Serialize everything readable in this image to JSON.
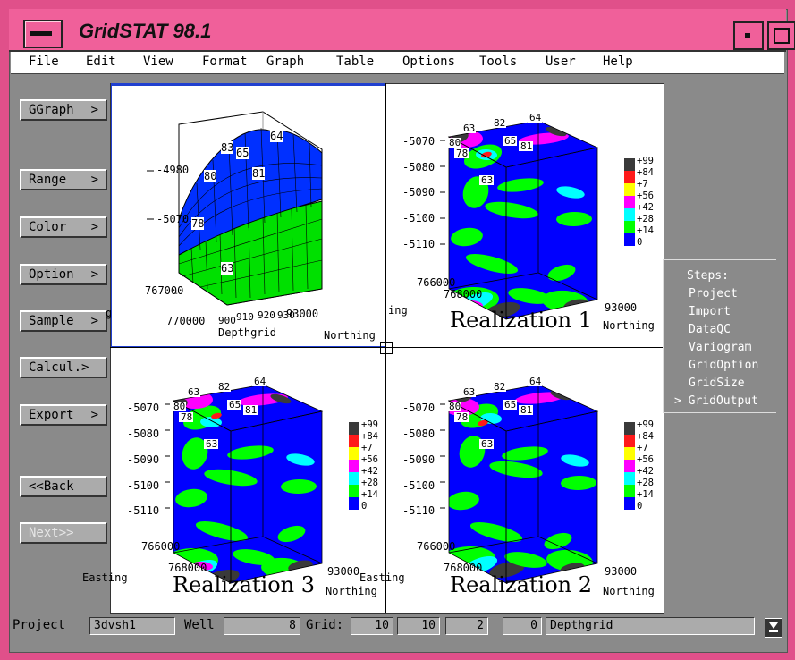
{
  "window": {
    "title": "GridSTAT 98.1"
  },
  "menu": [
    "File",
    "Edit",
    "View",
    "Format",
    "Graph",
    "Table",
    "Options",
    "Tools",
    "User",
    "Help"
  ],
  "side_buttons": [
    {
      "label": "GGraph",
      "arrow": ">"
    },
    {
      "label": "Range",
      "arrow": ">"
    },
    {
      "label": "Color",
      "arrow": ">"
    },
    {
      "label": "Option",
      "arrow": ">"
    },
    {
      "label": "Sample",
      "arrow": ">"
    },
    {
      "label": "Calcul.>",
      "arrow": ""
    },
    {
      "label": "Export",
      "arrow": ">"
    },
    {
      "label": "<<Back",
      "arrow": ""
    },
    {
      "label": "Next>>",
      "arrow": ""
    }
  ],
  "steps": {
    "header": "Steps:",
    "items": [
      "Project",
      "Import",
      "DataQC",
      "Variogram",
      "GridOption",
      "GridSize",
      "> GridOutput"
    ]
  },
  "plots": {
    "surface": {
      "z_ticks": [
        "-4980",
        "-5070"
      ],
      "easting_tick": "767000",
      "x_ticks": [
        "770000",
        "900",
        "910",
        "920",
        "930",
        "93000"
      ],
      "xlabel": "Depthgrid",
      "ylabel": "Northing",
      "labels": [
        "64",
        "83",
        "65",
        "81",
        "80",
        "78",
        "63"
      ]
    },
    "realization_1": {
      "title": "Realization 1"
    },
    "realization_2": {
      "title": "Realization 2"
    },
    "realization_3": {
      "title": "Realization 3"
    },
    "cube_ticks": [
      "-5070",
      "-5080",
      "-5090",
      "-5100",
      "-5110"
    ],
    "cube_x_ticks": [
      "766000",
      "768000"
    ],
    "cube_north_tick": "93000",
    "cube_well_labels": [
      "63",
      "82",
      "64",
      "80",
      "65",
      "81",
      "78",
      "63"
    ],
    "northing": "Northing",
    "easting": "Easting",
    "ing_fragment": "ing",
    "legend": [
      "+99",
      "+84",
      "+7",
      "+56",
      "+42",
      "+28",
      "+14",
      "0"
    ],
    "legend_colors": [
      "#3a3a3a",
      "#ff1a1a",
      "#ffff00",
      "#ff00ff",
      "#00ffff",
      "#00ff00",
      "#0000ff",
      "#ffffff"
    ]
  },
  "statusbar": {
    "project_label": "Project",
    "project_value": "3dvsh1",
    "well_label": "Well",
    "well_value": "8",
    "grid_label": "Grid:",
    "grid_values": [
      "10",
      "10",
      "2",
      "0"
    ],
    "grid_name": "Depthgrid"
  }
}
